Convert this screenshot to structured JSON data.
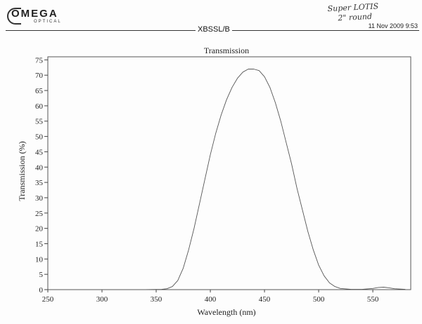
{
  "header": {
    "logo_text": "OMEGA",
    "logo_subtext": "OPTICAL",
    "part_number": "XBSSL/B",
    "date": "11 Nov 2009  9:53",
    "handwritten_note_line1": "Super LOTIS",
    "handwritten_note_line2": "2\" round"
  },
  "chart_data": {
    "type": "line",
    "title": "Transmission",
    "xlabel": "Wavelength (nm)",
    "ylabel": "Transmission (%)",
    "xlim": [
      250,
      585
    ],
    "ylim": [
      0,
      76
    ],
    "xticks": [
      250,
      300,
      350,
      400,
      450,
      500,
      550
    ],
    "yticks": [
      0,
      5,
      10,
      15,
      20,
      25,
      30,
      35,
      40,
      45,
      50,
      55,
      60,
      65,
      70,
      75
    ],
    "grid": false,
    "series": [
      {
        "color": "#555555",
        "x": [
          250,
          340,
          355,
          360,
          365,
          370,
          375,
          380,
          385,
          390,
          395,
          400,
          405,
          410,
          415,
          420,
          425,
          430,
          435,
          440,
          445,
          450,
          455,
          460,
          465,
          470,
          475,
          480,
          485,
          490,
          495,
          500,
          505,
          510,
          515,
          520,
          530,
          540,
          550,
          555,
          560,
          565,
          570,
          580
        ],
        "y": [
          0,
          0,
          0.1,
          0.3,
          1,
          3,
          7,
          13,
          20,
          28,
          36,
          44,
          51,
          57,
          62,
          66,
          69,
          71,
          72,
          72,
          71.5,
          69.5,
          66,
          61,
          55,
          48,
          41,
          33,
          26,
          19,
          13,
          8,
          4.5,
          2.2,
          1,
          0.4,
          0.1,
          0.1,
          0.4,
          0.7,
          0.8,
          0.6,
          0.3,
          0.1
        ]
      }
    ]
  }
}
